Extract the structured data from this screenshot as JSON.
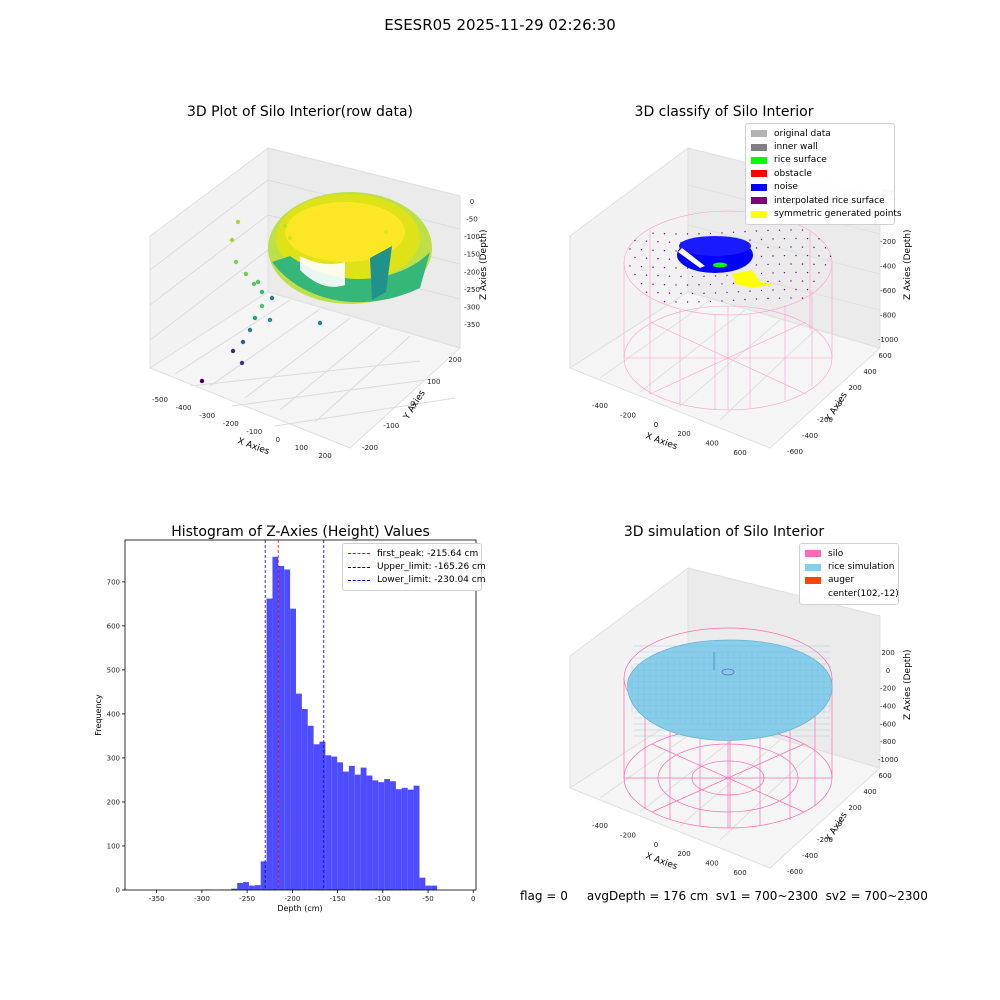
{
  "figure": {
    "suptitle": "ESESR05 2025-11-29 02:26:30",
    "footer": "flag = 0     avgDepth = 176 cm  sv1 = 700~2300  sv2 = 700~2300"
  },
  "colors": {
    "hist_bar": "#4d4dff",
    "first_peak": "#ff0000",
    "limits": "#0000cc",
    "silo": "#ff69b4",
    "rice_simulation": "#87ceeb",
    "auger": "#ff4500",
    "noise": "#0000ff",
    "rice_surface": "#00ff00",
    "symmetric_points": "#ffff00"
  },
  "chart_data": [
    {
      "type": "scatter3d",
      "title": "3D Plot of Silo Interior(row data)",
      "xlabel": "X Axies",
      "ylabel": "Y Axies",
      "zlabel": "Z Axies (Depth)",
      "xticks": [
        "-500",
        "-400",
        "-300",
        "-200",
        "-100",
        "0",
        "100",
        "200"
      ],
      "yticks": [
        "-200",
        "-100",
        "0",
        "100",
        "200"
      ],
      "zticks": [
        "0",
        "-50",
        "-100",
        "-150",
        "-200",
        "-250",
        "-300",
        "-350"
      ],
      "colormap": "viridis"
    },
    {
      "type": "scatter3d",
      "title": "3D classify of Silo Interior",
      "xlabel": "X Axies",
      "ylabel": "Y Axies",
      "zlabel": "Z Axies (Depth)",
      "xticks": [
        "-400",
        "-200",
        "0",
        "200",
        "400",
        "600"
      ],
      "yticks": [
        "-600",
        "-400",
        "-200",
        "0",
        "200",
        "400",
        "600"
      ],
      "zticks": [
        "200",
        "0",
        "-200",
        "-400",
        "-600",
        "-800",
        "-1000"
      ],
      "legend": [
        {
          "label": "original data",
          "color": "#b3b3b3"
        },
        {
          "label": "inner wall",
          "color": "#808080"
        },
        {
          "label": "rice surface",
          "color": "#00ff00"
        },
        {
          "label": "obstacle",
          "color": "#ff0000"
        },
        {
          "label": "noise",
          "color": "#0000ff"
        },
        {
          "label": "interpolated rice surface",
          "color": "#800080"
        },
        {
          "label": "symmetric generated points",
          "color": "#ffff00"
        }
      ]
    },
    {
      "type": "bar",
      "title": "Histogram of Z-Axies (Height) Values",
      "xlabel": "Depth (cm)",
      "ylabel": "Frequency",
      "xlim": [
        -385,
        3
      ],
      "ylim": [
        0,
        795
      ],
      "xticks": [
        -350,
        -300,
        -250,
        -200,
        -150,
        -100,
        -50,
        0
      ],
      "yticks": [
        0,
        100,
        200,
        300,
        400,
        500,
        600,
        700
      ],
      "bin_width": 6.5,
      "bin_start": -300,
      "values": [
        1,
        1,
        0,
        1,
        1,
        3,
        16,
        18,
        10,
        11,
        65,
        662,
        757,
        736,
        728,
        639,
        446,
        411,
        373,
        331,
        337,
        306,
        303,
        290,
        269,
        282,
        262,
        278,
        260,
        249,
        245,
        252,
        247,
        229,
        232,
        228,
        237,
        28,
        10,
        10
      ],
      "vlines": [
        {
          "label": "first_peak: -215.64 cm",
          "x": -215.64,
          "color": "#ff0000"
        },
        {
          "label": "Upper_limit: -165.26 cm",
          "x": -165.26,
          "color": "#0000cc"
        },
        {
          "label": "Lower_limit: -230.04 cm",
          "x": -230.04,
          "color": "#0000cc"
        }
      ]
    },
    {
      "type": "surface3d",
      "title": "3D simulation of Silo Interior",
      "xlabel": "X Axies",
      "ylabel": "Y Axies",
      "zlabel": "Z Axies (Depth)",
      "xticks": [
        "-400",
        "-200",
        "0",
        "200",
        "400",
        "600"
      ],
      "yticks": [
        "-600",
        "-400",
        "-200",
        "0",
        "200",
        "400",
        "600"
      ],
      "zticks": [
        "200",
        "0",
        "-200",
        "-400",
        "-600",
        "-800",
        "-1000"
      ],
      "legend": [
        {
          "label": "silo",
          "color": "#ff69b4"
        },
        {
          "label": "rice simulation",
          "color": "#87ceeb"
        },
        {
          "label": "auger",
          "color": "#ff4500"
        },
        {
          "label": "center(102,-12)",
          "color": "#ffffff"
        }
      ]
    }
  ]
}
